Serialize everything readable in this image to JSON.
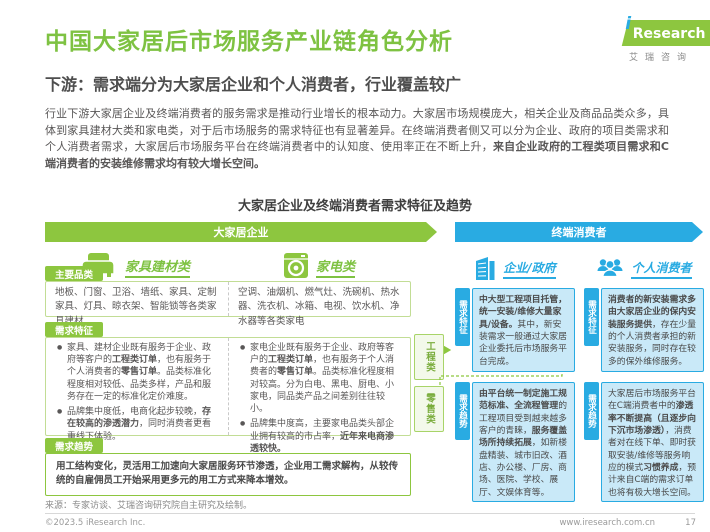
{
  "header": {
    "title": "中国大家居后市场服务产业链角色分析",
    "subtitle": "下游：需求端分为大家居企业和个人消费者，行业覆盖较广",
    "logo": {
      "i": "i",
      "brand": "Research",
      "cn": "艾瑞咨询"
    }
  },
  "intro": [
    {
      "t": "行业下游大家居企业及终端消费者的服务需求是推动行业增长的根本动力。大家居市场规模庞大，相关企业及商品品类众多，具体到家具建材大类和家电类，对于后市场服务的需求特征也有显著差异。在终端消费者侧又可以分为企业、政府的项目类需求和个人消费者需求，大家居后市场服务平台在终端消费者中的认知度、使用率正在不断上升，"
    },
    {
      "t": "来自企业政府的工程类项目需求和C端消费者的安装维修需求均有较大增长空间。",
      "b": true
    }
  ],
  "figure": {
    "title": "大家居企业及终端消费者需求特征及趋势",
    "left_banner": "大家居企业",
    "right_banner": "终端消费者",
    "row_labels": {
      "categories": "主要品类",
      "features": "需求特征",
      "trends": "需求趋势"
    },
    "furniture": {
      "label": "家具建材类",
      "categories": "地板、门窗、卫浴、墙纸、家具、定制家具、灯具、晾衣架、智能锁等各类家具建材",
      "bullets": [
        [
          {
            "t": "家具、建材企业既有服务于企业、政府等客户的"
          },
          {
            "t": "工程类订单",
            "b": true
          },
          {
            "t": "，也有服务于个人消费者的"
          },
          {
            "t": "零售订单",
            "b": true
          },
          {
            "t": "。品类标准化程度相对较低、品类多样，产品和服务存在一定的标准化定价难度。"
          }
        ],
        [
          {
            "t": "品牌集中度低，电商化起步较晚，"
          },
          {
            "t": "存在较高的渗透潜力",
            "b": true
          },
          {
            "t": "，同时消费者更看重线下体验。"
          }
        ]
      ]
    },
    "appliance": {
      "label": "家电类",
      "categories": "空调、油烟机、燃气灶、洗碗机、热水器、洗衣机、冰箱、电视、饮水机、净水器等各类家电",
      "bullets": [
        [
          {
            "t": "家电企业既有服务于企业、政府等客户的"
          },
          {
            "t": "工程类订单",
            "b": true
          },
          {
            "t": "，也有服务于个人消费者的"
          },
          {
            "t": "零售订单",
            "b": true
          },
          {
            "t": "。品类标准化程度相对较高。分为白电、黑电、厨电、小家电，同品类产品之间差别往往较小。"
          }
        ],
        [
          {
            "t": "品牌集中度高，主要家电品类头部企业拥有较高的市占率，"
          },
          {
            "t": "近年来电商渗透较快。",
            "b": true
          }
        ]
      ]
    },
    "left_trend": [
      {
        "t": "用工结构变化，灵活用工加速向大家居服务环节渗透，企业用工需求解构，从较传统的自雇佣员工开始采用更多元的用工方式来降本增效。",
        "b": true
      }
    ],
    "connectors": {
      "engineering": "工程类",
      "retail": "零售类"
    },
    "gov": {
      "label": "企业/政府",
      "feature": [
        {
          "t": "中大型工程项目托管，统一安装/维修大量家具/设备。",
          "b": true
        },
        {
          "t": "其中，新安装需求一般通过大家居企业委托后市场服务平台完成。"
        }
      ],
      "trend": [
        {
          "t": "由平台统一制定施工规范标准、全流程管理",
          "b": true
        },
        {
          "t": "的工程项目受到越来越多客户的青睐，"
        },
        {
          "t": "服务覆盖场所持续拓展",
          "b": true
        },
        {
          "t": "，如新楼盘精装、城市旧改、酒店、办公楼、厂房、商场、医院、学校、展厅、文娱体育等。"
        }
      ]
    },
    "consumer": {
      "label": "个人消费者",
      "feature": [
        {
          "t": "消费者的新安装需求多由大家居企业的保内安装服务提供",
          "b": true
        },
        {
          "t": "，存在少量的个人消费者承担的新安装服务，同时存在较多的保外维修服务。"
        }
      ],
      "trend": [
        {
          "t": "大家居后市场服务平台在C端消费者中的"
        },
        {
          "t": "渗透率不断提高（且逐步向下沉市场渗透）",
          "b": true
        },
        {
          "t": "，消费者对在线下单、即时获取安装/维修等服务响应的模式"
        },
        {
          "t": "习惯养成",
          "b": true
        },
        {
          "t": "，预计来自C端的需求订单也将有极大增长空间。"
        }
      ]
    }
  },
  "source": "来源：专家访谈、艾瑞咨询研究院自主研究及绘制。",
  "footer": {
    "copyright": "©2023.5 iResearch Inc.",
    "site": "www.iresearch.com.cn",
    "page": "17"
  },
  "colors": {
    "brand_green": "#8DC63F",
    "brand_cyan": "#29ABE2"
  }
}
